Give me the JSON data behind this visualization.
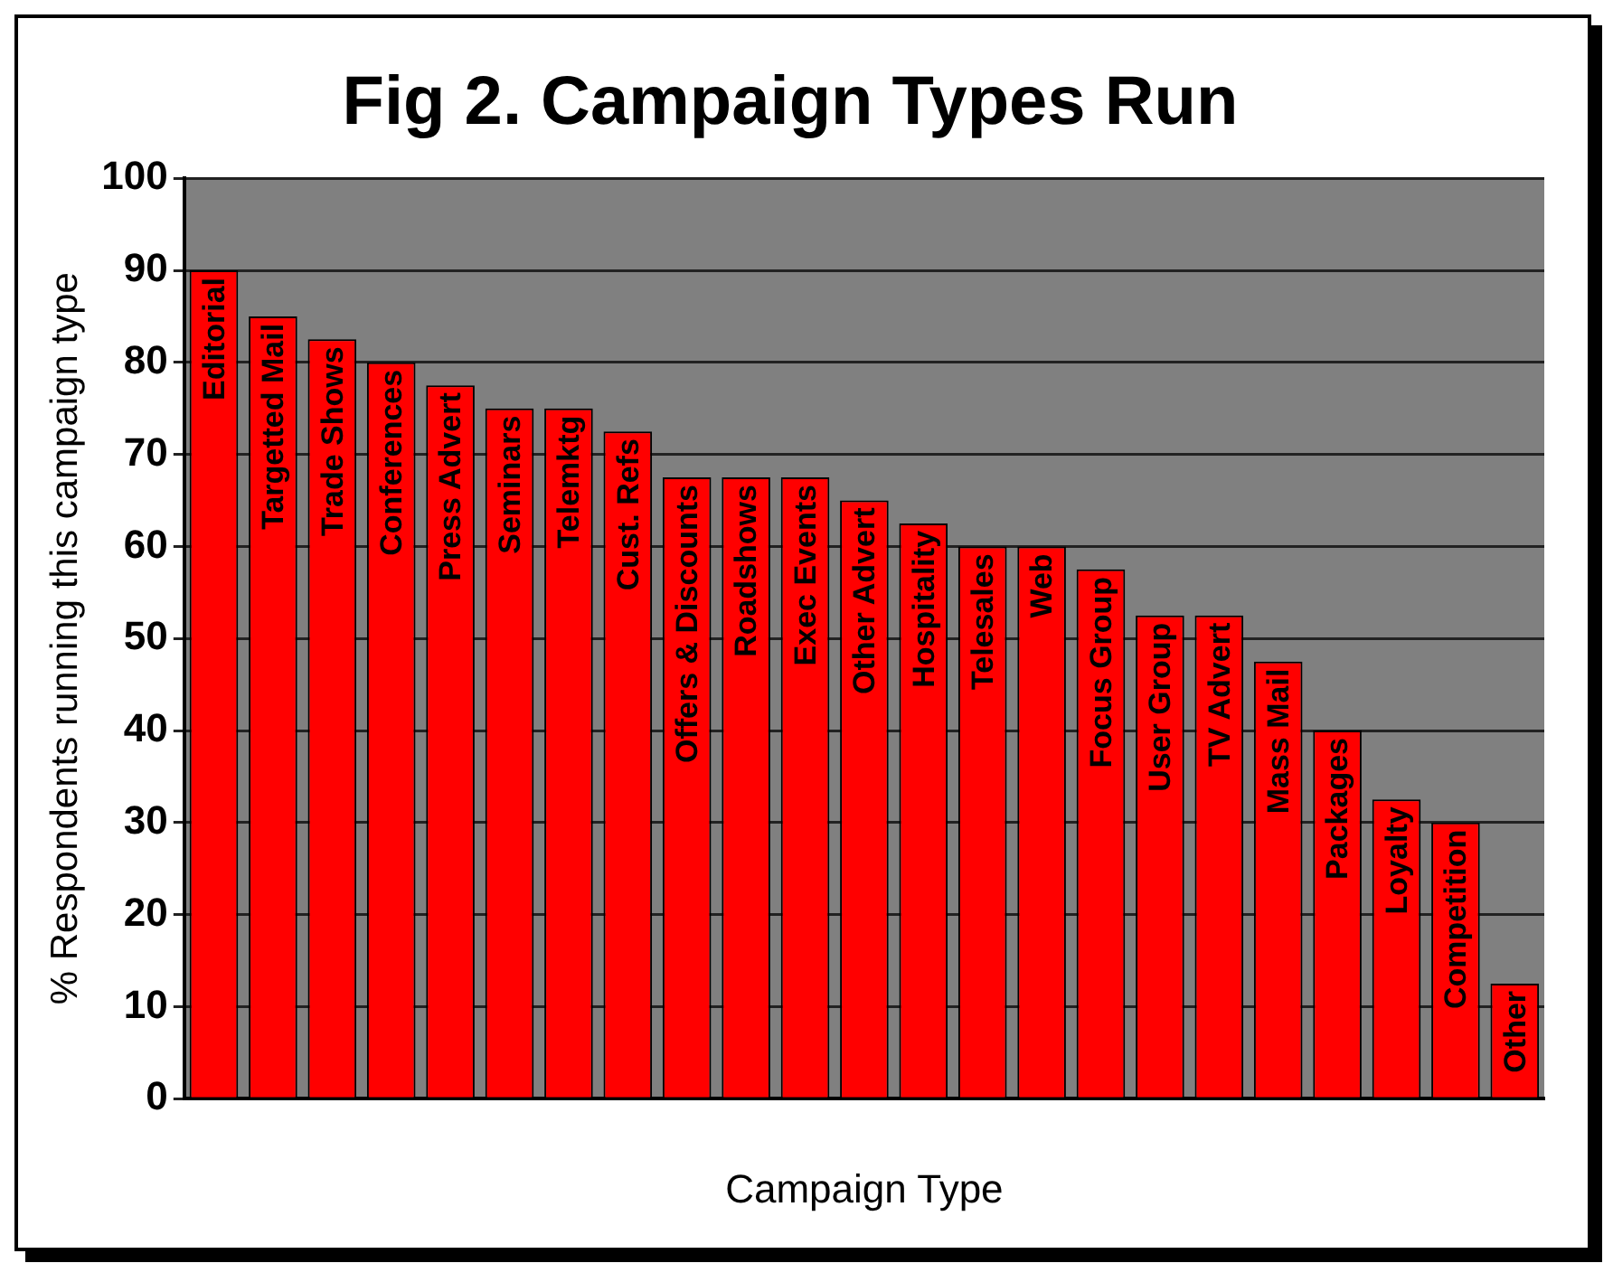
{
  "chart_data": {
    "type": "bar",
    "title": "Fig 2. Campaign Types Run",
    "xlabel": "Campaign Type",
    "ylabel": "% Respondents running this campaign type",
    "categories": [
      "Editorial",
      "Targetted Mail",
      "Trade Shows",
      "Conferences",
      "Press Advert",
      "Seminars",
      "Telemktg",
      "Cust. Refs",
      "Offers & Discounts",
      "Roadshows",
      "Exec Events",
      "Other Advert",
      "Hospitality",
      "Telesales",
      "Web",
      "Focus Group",
      "User Group",
      "TV Advert",
      "Mass Mail",
      "Packages",
      "Loyalty",
      "Competition",
      "Other"
    ],
    "values": [
      90,
      85,
      82.5,
      80,
      77.5,
      75,
      75,
      72.5,
      67.5,
      67.5,
      67.5,
      65,
      62.5,
      60,
      60,
      57.5,
      52.5,
      52.5,
      47.5,
      40,
      32.5,
      30,
      12.5
    ],
    "color": "#ff0000",
    "ylim": [
      0,
      100
    ],
    "yticks": [
      0,
      10,
      20,
      30,
      40,
      50,
      60,
      70,
      80,
      90,
      100
    ],
    "grid": "y"
  }
}
